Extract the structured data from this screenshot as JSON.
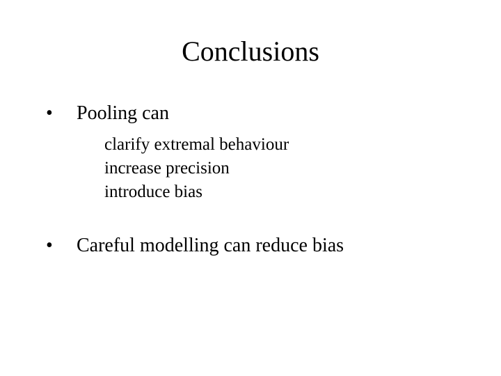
{
  "title": "Conclusions",
  "bullets": [
    {
      "text": "Pooling can",
      "subitems": [
        "clarify extremal behaviour",
        "increase precision",
        "introduce bias"
      ]
    },
    {
      "text": "Careful modelling can reduce bias",
      "subitems": []
    }
  ],
  "colors": {
    "background": "#ffffff",
    "text": "#000000"
  },
  "fonts": {
    "title_size": 40,
    "bullet_size": 28,
    "sub_size": 25,
    "family": "Times New Roman"
  }
}
